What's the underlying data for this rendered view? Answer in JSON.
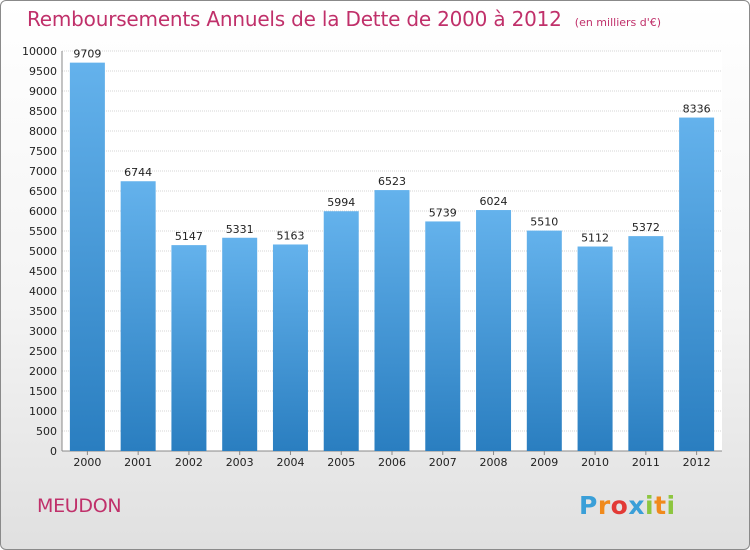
{
  "title": "Remboursements Annuels de la Dette de 2000 à 2012",
  "unit": "(en milliers d'€)",
  "city": "MEUDON",
  "logo": {
    "text": "Proxiti",
    "letters": [
      "P",
      "r",
      "o",
      "x",
      "i",
      "t",
      "i"
    ],
    "colors": [
      "#3a9fd8",
      "#f08a1c",
      "#e23a36",
      "#3a9fd8",
      "#8dc63f",
      "#f08a1c",
      "#8dc63f"
    ]
  },
  "colors": {
    "title": "#c0306a",
    "bar_top": "#64b2ec",
    "bar_bottom": "#2a7ec0",
    "grid": "#d6d6d6",
    "axis_text": "#222222"
  },
  "chart_data": {
    "type": "bar",
    "categories": [
      "2000",
      "2001",
      "2002",
      "2003",
      "2004",
      "2005",
      "2006",
      "2007",
      "2008",
      "2009",
      "2010",
      "2011",
      "2012"
    ],
    "values": [
      9709,
      6744,
      5147,
      5331,
      5163,
      5994,
      6523,
      5739,
      6024,
      5510,
      5112,
      5372,
      8336
    ],
    "title": "Remboursements Annuels de la Dette de 2000 à 2012",
    "xlabel": "",
    "ylabel": "",
    "ylim": [
      0,
      10000
    ],
    "yticks": [
      0,
      500,
      1000,
      1500,
      2000,
      2500,
      3000,
      3500,
      4000,
      4500,
      5000,
      5500,
      6000,
      6500,
      7000,
      7500,
      8000,
      8500,
      9000,
      9500,
      10000
    ],
    "grid": true,
    "data_labels": true,
    "legend": "none"
  }
}
